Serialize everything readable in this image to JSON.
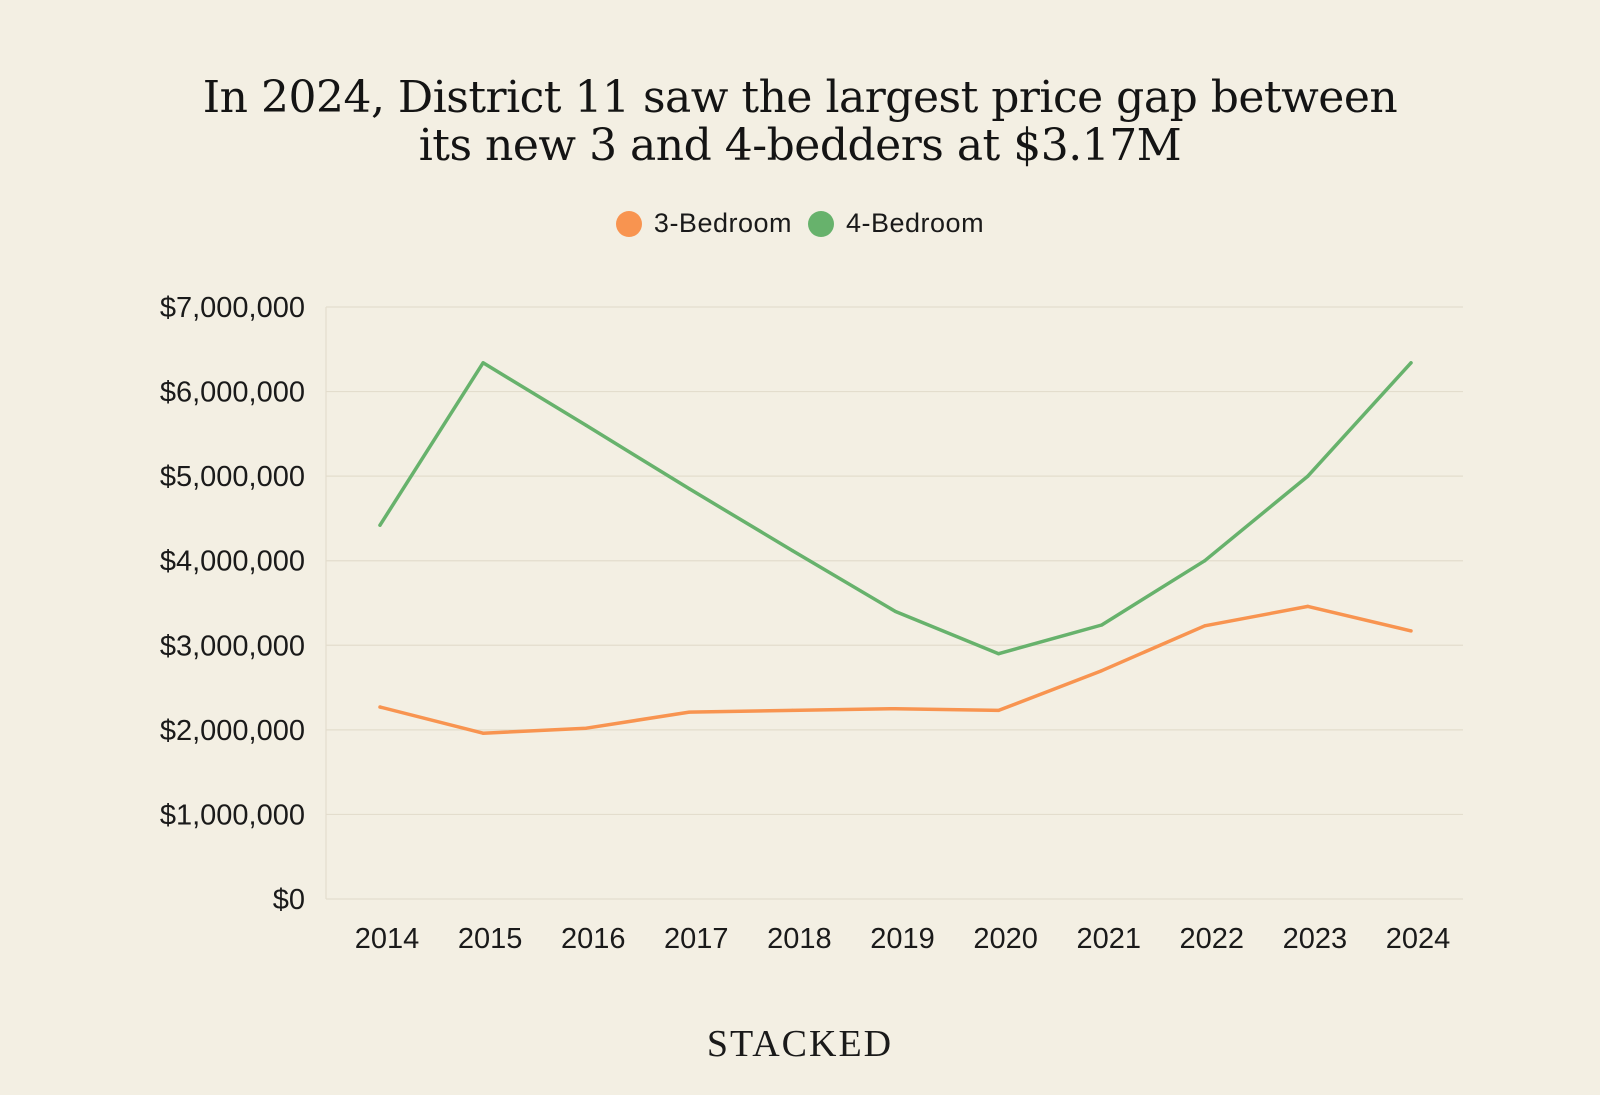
{
  "chart_data": {
    "type": "line",
    "title": "In 2024, District 11 saw the largest price gap between its new 3 and 4-bedders at $3.17M",
    "title_lines": [
      "In 2024, District 11 saw the largest price gap between",
      "its new 3 and 4-bedders at $3.17M"
    ],
    "xlabel": "",
    "ylabel": "",
    "x": [
      "2014",
      "2015",
      "2016",
      "2017",
      "2018",
      "2019",
      "2020",
      "2021",
      "2022",
      "2023",
      "2024"
    ],
    "ylim": [
      0,
      7000000
    ],
    "yticks": [
      0,
      1000000,
      2000000,
      3000000,
      4000000,
      5000000,
      6000000,
      7000000
    ],
    "ytick_labels": [
      "$0",
      "$1,000,000",
      "$2,000,000",
      "$3,000,000",
      "$4,000,000",
      "$5,000,000",
      "$6,000,000",
      "$7,000,000"
    ],
    "grid": true,
    "legend_position": "top-center",
    "series": [
      {
        "name": "3-Bedroom",
        "color": "#f89450",
        "values": [
          2270000,
          1960000,
          2020000,
          2210000,
          2230000,
          2250000,
          2230000,
          2700000,
          3230000,
          3460000,
          3170000
        ]
      },
      {
        "name": "4-Bedroom",
        "color": "#67b26c",
        "values": [
          4420000,
          6340000,
          5600000,
          4850000,
          4120000,
          3400000,
          2900000,
          3240000,
          4000000,
          5000000,
          6340000
        ]
      }
    ]
  },
  "brand": "STACKED"
}
